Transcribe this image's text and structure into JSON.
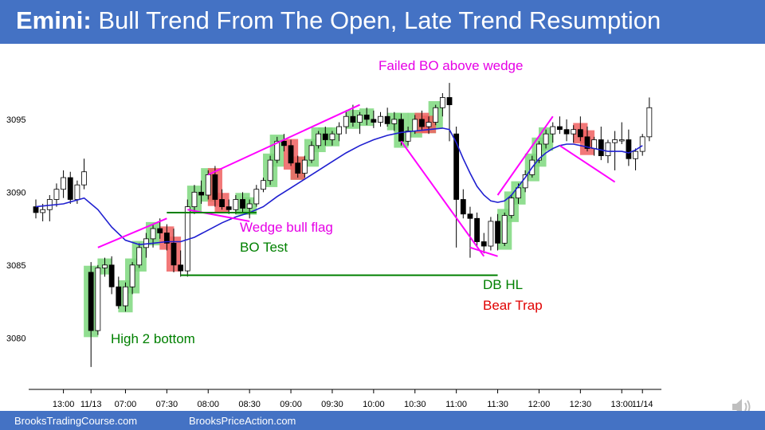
{
  "header": {
    "title_bold": "Emini:",
    "title_rest": " Bull Trend From The Open, Late Trend Resumption"
  },
  "footer": {
    "left": "BrooksTradingCourse.com",
    "right": "BrooksPriceAction.com"
  },
  "colors": {
    "header_bg": "#4472c4",
    "ema": "#1f1fd0",
    "trendline": "#ff00ff",
    "hline": "#008000",
    "bull_highlight": "#7ed87e",
    "bear_highlight": "#f06060"
  },
  "annotations": {
    "failed_bo": "Failed BO above wedge",
    "wedge": "Wedge bull flag",
    "bo_test": "BO Test",
    "db_hl": "DB HL",
    "bear_trap": "Bear Trap",
    "high2": "High 2 bottom"
  },
  "chart_data": {
    "type": "candlestick",
    "y_ticks": [
      3080,
      3085,
      3090,
      3095
    ],
    "ylim": [
      3077.5,
      3098.0
    ],
    "x_ticks": [
      {
        "label": "13:00",
        "bar": 4
      },
      {
        "label": "11/13",
        "bar": 8
      },
      {
        "label": "07:00",
        "bar": 13
      },
      {
        "label": "07:30",
        "bar": 19
      },
      {
        "label": "08:00",
        "bar": 25
      },
      {
        "label": "08:30",
        "bar": 31
      },
      {
        "label": "09:00",
        "bar": 37
      },
      {
        "label": "09:30",
        "bar": 43
      },
      {
        "label": "10:00",
        "bar": 49
      },
      {
        "label": "10:30",
        "bar": 55
      },
      {
        "label": "11:00",
        "bar": 61
      },
      {
        "label": "11:30",
        "bar": 67
      },
      {
        "label": "12:00",
        "bar": 73
      },
      {
        "label": "12:30",
        "bar": 79
      },
      {
        "label": "13:00",
        "bar": 85
      },
      {
        "label": "11/14",
        "bar": 88
      }
    ],
    "candles": [
      [
        3089.0,
        3089.5,
        3088.2,
        3088.6
      ],
      [
        3088.6,
        3089.2,
        3088.0,
        3088.8
      ],
      [
        3088.8,
        3089.8,
        3088.0,
        3089.5
      ],
      [
        3089.5,
        3090.6,
        3089.0,
        3090.2
      ],
      [
        3090.2,
        3091.5,
        3089.6,
        3091.0
      ],
      [
        3091.0,
        3091.4,
        3089.2,
        3089.5
      ],
      [
        3089.5,
        3090.8,
        3089.2,
        3090.5
      ],
      [
        3090.5,
        3092.3,
        3090.2,
        3091.4
      ],
      [
        3084.5,
        3085.2,
        3078.0,
        3080.5
      ],
      [
        3080.5,
        3085.0,
        3080.2,
        3084.8
      ],
      [
        3084.8,
        3085.5,
        3084.2,
        3085.0
      ],
      [
        3085.0,
        3085.6,
        3083.0,
        3083.5
      ],
      [
        3083.5,
        3084.2,
        3082.0,
        3082.2
      ],
      [
        3082.2,
        3083.8,
        3081.8,
        3083.5
      ],
      [
        3083.5,
        3085.2,
        3083.0,
        3085.0
      ],
      [
        3085.0,
        3086.5,
        3084.8,
        3086.2
      ],
      [
        3086.2,
        3087.2,
        3085.5,
        3086.8
      ],
      [
        3086.8,
        3087.8,
        3086.2,
        3087.5
      ],
      [
        3087.5,
        3088.2,
        3086.8,
        3087.2
      ],
      [
        3087.2,
        3087.8,
        3086.0,
        3086.5
      ],
      [
        3086.5,
        3087.5,
        3084.5,
        3085.0
      ],
      [
        3085.0,
        3086.0,
        3084.2,
        3084.6
      ],
      [
        3084.6,
        3089.5,
        3084.2,
        3089.0
      ],
      [
        3089.0,
        3090.5,
        3088.5,
        3090.0
      ],
      [
        3090.0,
        3090.8,
        3089.2,
        3089.8
      ],
      [
        3089.8,
        3091.5,
        3089.5,
        3091.2
      ],
      [
        3091.2,
        3091.8,
        3089.0,
        3089.5
      ],
      [
        3089.5,
        3090.2,
        3088.8,
        3089.0
      ],
      [
        3089.0,
        3089.5,
        3088.5,
        3088.8
      ],
      [
        3088.8,
        3089.8,
        3088.5,
        3089.5
      ],
      [
        3089.5,
        3090.0,
        3088.6,
        3088.9
      ],
      [
        3088.9,
        3089.5,
        3088.2,
        3089.2
      ],
      [
        3089.2,
        3090.5,
        3089.0,
        3090.2
      ],
      [
        3090.2,
        3091.0,
        3090.0,
        3090.8
      ],
      [
        3090.8,
        3092.5,
        3090.5,
        3092.2
      ],
      [
        3092.2,
        3093.8,
        3092.0,
        3093.5
      ],
      [
        3093.5,
        3094.0,
        3092.8,
        3093.2
      ],
      [
        3093.2,
        3093.6,
        3091.8,
        3092.0
      ],
      [
        3092.0,
        3092.5,
        3091.0,
        3091.3
      ],
      [
        3091.3,
        3092.5,
        3091.0,
        3092.2
      ],
      [
        3092.2,
        3093.5,
        3092.0,
        3093.2
      ],
      [
        3093.2,
        3094.2,
        3093.0,
        3094.0
      ],
      [
        3094.0,
        3094.5,
        3093.2,
        3093.6
      ],
      [
        3093.6,
        3094.2,
        3093.2,
        3094.0
      ],
      [
        3094.0,
        3094.8,
        3093.5,
        3094.5
      ],
      [
        3094.5,
        3095.5,
        3094.0,
        3095.2
      ],
      [
        3095.2,
        3096.0,
        3094.5,
        3094.8
      ],
      [
        3094.8,
        3095.5,
        3094.0,
        3095.3
      ],
      [
        3095.3,
        3095.8,
        3094.6,
        3095.0
      ],
      [
        3095.0,
        3095.6,
        3094.4,
        3094.8
      ],
      [
        3094.8,
        3095.5,
        3094.5,
        3095.2
      ],
      [
        3095.2,
        3095.8,
        3094.5,
        3094.7
      ],
      [
        3094.7,
        3095.5,
        3094.2,
        3095.0
      ],
      [
        3095.0,
        3095.4,
        3093.2,
        3093.5
      ],
      [
        3093.5,
        3094.5,
        3093.2,
        3094.2
      ],
      [
        3094.2,
        3095.3,
        3094.0,
        3095.0
      ],
      [
        3095.0,
        3095.6,
        3094.2,
        3094.5
      ],
      [
        3094.5,
        3095.2,
        3094.0,
        3094.8
      ],
      [
        3094.8,
        3096.0,
        3094.6,
        3095.8
      ],
      [
        3095.8,
        3096.8,
        3095.2,
        3096.5
      ],
      [
        3096.5,
        3097.5,
        3093.5,
        3096.0
      ],
      [
        3094.0,
        3094.5,
        3086.2,
        3089.5
      ],
      [
        3089.5,
        3090.2,
        3088.2,
        3088.5
      ],
      [
        3088.5,
        3089.0,
        3085.5,
        3088.2
      ],
      [
        3088.2,
        3088.6,
        3086.2,
        3086.6
      ],
      [
        3086.6,
        3087.2,
        3085.8,
        3086.3
      ],
      [
        3086.3,
        3088.3,
        3086.0,
        3088.0
      ],
      [
        3088.0,
        3088.5,
        3086.0,
        3086.5
      ],
      [
        3086.5,
        3088.6,
        3086.3,
        3088.4
      ],
      [
        3088.4,
        3089.8,
        3088.2,
        3089.6
      ],
      [
        3089.6,
        3090.6,
        3089.2,
        3090.3
      ],
      [
        3090.3,
        3091.5,
        3090.0,
        3091.2
      ],
      [
        3091.2,
        3092.5,
        3091.0,
        3092.2
      ],
      [
        3092.2,
        3093.5,
        3092.0,
        3093.3
      ],
      [
        3093.3,
        3094.3,
        3093.0,
        3094.0
      ],
      [
        3094.0,
        3094.8,
        3093.4,
        3094.5
      ],
      [
        3094.5,
        3095.2,
        3094.0,
        3094.3
      ],
      [
        3094.3,
        3095.0,
        3093.5,
        3094.0
      ],
      [
        3094.0,
        3094.6,
        3093.4,
        3094.3
      ],
      [
        3094.3,
        3095.2,
        3093.5,
        3093.8
      ],
      [
        3093.8,
        3094.5,
        3092.8,
        3093.0
      ],
      [
        3093.0,
        3093.8,
        3092.5,
        3093.6
      ],
      [
        3093.6,
        3094.5,
        3092.2,
        3092.5
      ],
      [
        3092.5,
        3093.6,
        3092.0,
        3093.4
      ],
      [
        3093.4,
        3094.2,
        3091.5,
        3093.6
      ],
      [
        3093.6,
        3094.8,
        3093.3,
        3093.6
      ],
      [
        3093.6,
        3094.3,
        3091.8,
        3092.3
      ],
      [
        3092.3,
        3093.0,
        3091.5,
        3092.8
      ],
      [
        3092.8,
        3094.0,
        3092.5,
        3093.8
      ],
      [
        3093.8,
        3096.5,
        3093.5,
        3095.8
      ]
    ],
    "ema": [
      [
        0,
        3089.0
      ],
      [
        4,
        3089.2
      ],
      [
        7,
        3089.6
      ],
      [
        9,
        3088.8
      ],
      [
        11,
        3087.6
      ],
      [
        13,
        3086.7
      ],
      [
        15,
        3086.4
      ],
      [
        17,
        3086.5
      ],
      [
        19,
        3086.6
      ],
      [
        21,
        3086.6
      ],
      [
        23,
        3086.9
      ],
      [
        25,
        3087.4
      ],
      [
        27,
        3087.9
      ],
      [
        29,
        3088.3
      ],
      [
        31,
        3088.6
      ],
      [
        33,
        3089.0
      ],
      [
        35,
        3089.7
      ],
      [
        37,
        3090.3
      ],
      [
        39,
        3090.9
      ],
      [
        41,
        3091.5
      ],
      [
        43,
        3092.1
      ],
      [
        45,
        3092.7
      ],
      [
        47,
        3093.2
      ],
      [
        49,
        3093.6
      ],
      [
        51,
        3093.9
      ],
      [
        53,
        3094.1
      ],
      [
        55,
        3094.2
      ],
      [
        57,
        3094.3
      ],
      [
        59,
        3094.4
      ],
      [
        60,
        3094.3
      ],
      [
        61,
        3093.4
      ],
      [
        62,
        3092.3
      ],
      [
        63,
        3091.3
      ],
      [
        64,
        3090.4
      ],
      [
        65,
        3089.8
      ],
      [
        66,
        3089.4
      ],
      [
        67,
        3089.3
      ],
      [
        68,
        3089.4
      ],
      [
        69,
        3089.8
      ],
      [
        70,
        3090.4
      ],
      [
        71,
        3091.0
      ],
      [
        72,
        3091.7
      ],
      [
        73,
        3092.3
      ],
      [
        74,
        3092.7
      ],
      [
        75,
        3093.0
      ],
      [
        76,
        3093.2
      ],
      [
        77,
        3093.3
      ],
      [
        78,
        3093.3
      ],
      [
        79,
        3093.2
      ],
      [
        80,
        3093.1
      ],
      [
        81,
        3093.0
      ],
      [
        82,
        3092.9
      ],
      [
        83,
        3092.8
      ],
      [
        84,
        3092.8
      ],
      [
        85,
        3092.8
      ],
      [
        86,
        3092.7
      ],
      [
        87,
        3092.9
      ],
      [
        88,
        3093.2
      ]
    ],
    "bull_highlights": [
      8,
      10,
      13,
      14,
      15,
      17,
      23,
      25,
      30,
      31,
      34,
      35,
      38,
      40,
      41,
      42,
      43,
      46,
      48,
      52,
      53,
      55,
      57,
      58,
      68,
      69,
      70,
      72,
      73,
      74
    ],
    "bear_highlights": [
      19,
      20,
      26,
      27,
      37,
      38,
      56,
      57,
      79,
      80
    ],
    "trendlines": [
      {
        "name": "wedge-top-line",
        "from": [
          9,
          3086.2
        ],
        "to": [
          19,
          3088.2
        ]
      },
      {
        "name": "wedge-top-line-2",
        "from": [
          25,
          3091.2
        ],
        "to": [
          47,
          3096.0
        ]
      },
      {
        "name": "wedge-bottom-line",
        "from": [
          22,
          3088.8
        ],
        "to": [
          31,
          3088.0
        ]
      },
      {
        "name": "failed-bo-down-line",
        "from": [
          53,
          3093.5
        ],
        "to": [
          65,
          3085.6
        ]
      },
      {
        "name": "db-bottom-line",
        "from": [
          63,
          3086.2
        ],
        "to": [
          67,
          3085.6
        ]
      },
      {
        "name": "rally-line",
        "from": [
          67,
          3089.8
        ],
        "to": [
          75,
          3095.2
        ]
      },
      {
        "name": "bull-flag-line",
        "from": [
          76,
          3093.2
        ],
        "to": [
          84,
          3090.7
        ]
      }
    ],
    "hlines": [
      {
        "name": "bo-test-line",
        "from": [
          19,
          3088.6
        ],
        "to": [
          32,
          3088.6
        ]
      },
      {
        "name": "db-hl-line",
        "from": [
          21,
          3084.3
        ],
        "to": [
          67,
          3084.3
        ]
      }
    ]
  }
}
